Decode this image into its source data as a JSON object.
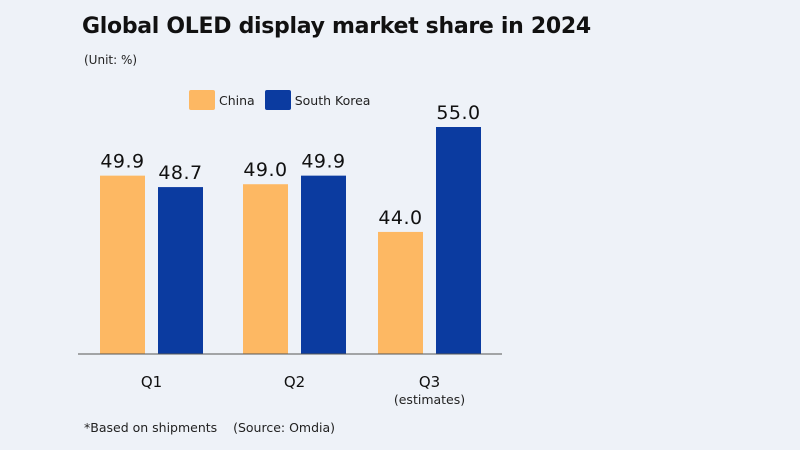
{
  "chart_data": {
    "type": "bar",
    "title": "Global OLED display market share in 2024",
    "subtitle": "(Unit: %)",
    "categories": [
      "Q1",
      "Q2",
      "Q3"
    ],
    "category_sublabels": [
      "",
      "",
      "(estimates)"
    ],
    "series": [
      {
        "name": "China",
        "values": [
          49.9,
          49.0,
          44.0
        ],
        "color": "#fdb863"
      },
      {
        "name": "South Korea",
        "values": [
          48.7,
          49.9,
          55.0
        ],
        "color": "#0b3ba0"
      }
    ],
    "data_labels": [
      [
        "49.9",
        "49.0",
        "44.0"
      ],
      [
        "48.7",
        "49.9",
        "55.0"
      ]
    ],
    "xlabel": "",
    "ylabel": "",
    "ylim": [
      31.2,
      55
    ],
    "grid": false,
    "legend_position": "top",
    "footnote": "*Based on shipments    (Source: Omdia)"
  }
}
